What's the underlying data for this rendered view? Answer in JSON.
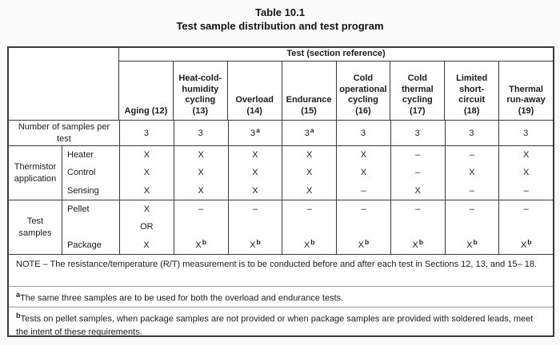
{
  "title": {
    "line1": "Table 10.1",
    "line2": "Test sample distribution and test program"
  },
  "table": {
    "test_section_header": "Test (section reference)",
    "column_headers": [
      "Aging (12)",
      "Heat-cold-\nhumidity\ncycling\n(13)",
      "Overload\n(14)",
      "Endurance\n(15)",
      "Cold\noperational\ncycling\n(16)",
      "Cold\nthermal\ncycling\n(17)",
      "Limited\nshort-\ncircuit\n(18)",
      "Thermal\nrun-away\n(19)"
    ],
    "samples_row": {
      "label": "Number of samples per\ntest",
      "values": [
        "3",
        "3",
        "3",
        "3",
        "3",
        "3",
        "3",
        "3"
      ],
      "sups": [
        "",
        "",
        "a",
        "a",
        "",
        "",
        "",
        ""
      ]
    },
    "thermistor_group": {
      "label": "Thermistor\napplication",
      "rows": [
        {
          "label": "Heater",
          "values": [
            "X",
            "X",
            "X",
            "X",
            "X",
            "–",
            "–",
            "X"
          ]
        },
        {
          "label": "Control",
          "values": [
            "X",
            "X",
            "X",
            "X",
            "X",
            "–",
            "X",
            "X"
          ]
        },
        {
          "label": "Sensing",
          "values": [
            "X",
            "X",
            "X",
            "X",
            "–",
            "X",
            "–",
            "–"
          ]
        }
      ]
    },
    "test_samples_group": {
      "label": "Test\nsamples",
      "pellet_label": "Pellet",
      "package_label": "Package",
      "or_label": "OR",
      "pellet_values": [
        "X",
        "–",
        "–",
        "–",
        "–",
        "–",
        "–",
        "–"
      ],
      "package_values": [
        "X",
        "X",
        "X",
        "X",
        "X",
        "X",
        "X",
        "X"
      ],
      "package_sups": [
        "",
        "b",
        "b",
        "b",
        "b",
        "b",
        "b",
        "b"
      ]
    },
    "note": "NOTE – The resistance/temperature (R/T) measurement is to be conducted before and after each test in Sections 12, 13, and 15– 18.",
    "footnote_a": {
      "marker": "a",
      "text": "The same three samples are to be used for both the overload and endurance tests."
    },
    "footnote_b": {
      "marker": "b",
      "text": "Tests on pellet samples, when package samples are not provided or when package samples are provided with soldered leads, meet the intent of these requirements."
    }
  },
  "colors": {
    "border_dark": "#3c3c3c",
    "border_light": "#999999",
    "text": "#1c1c1c",
    "background": "#fafafa"
  }
}
